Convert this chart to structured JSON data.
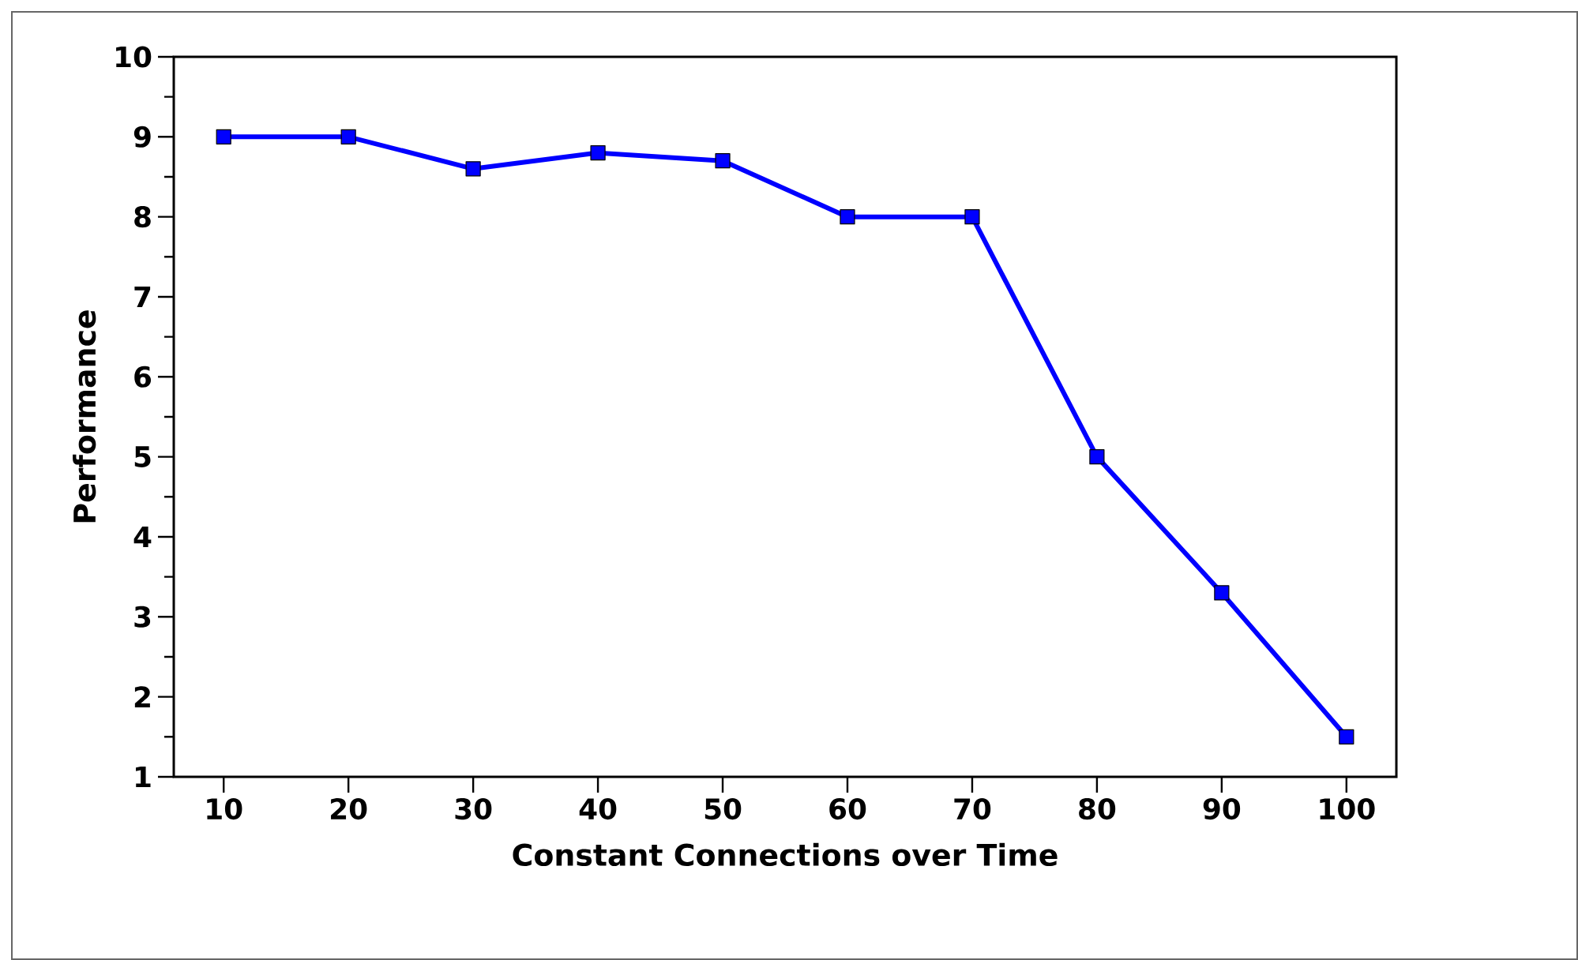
{
  "chart_data": {
    "type": "line",
    "xlabel": "Constant Connections over Time",
    "ylabel": "Performance",
    "x": [
      10,
      20,
      30,
      40,
      50,
      60,
      70,
      80,
      90,
      100
    ],
    "series": [
      {
        "color": "#0000ff",
        "values": [
          9,
          9,
          8.6,
          8.8,
          8.7,
          8.0,
          8.0,
          5.0,
          3.3,
          1.5
        ]
      }
    ],
    "xlim": [
      6,
      104
    ],
    "xticks": [
      10,
      20,
      30,
      40,
      50,
      60,
      70,
      80,
      90,
      100
    ],
    "ylim": [
      1,
      10
    ],
    "yticks": [
      1,
      2,
      3,
      4,
      5,
      6,
      7,
      8,
      9,
      10
    ],
    "marker": "square",
    "line_style": "solid"
  }
}
